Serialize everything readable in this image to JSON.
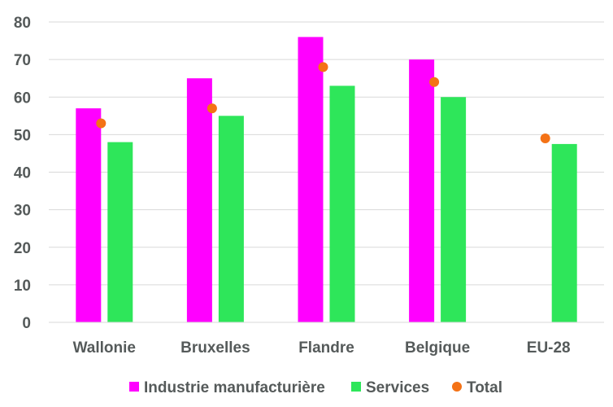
{
  "chart_data": {
    "type": "bar",
    "categories": [
      "Wallonie",
      "Bruxelles",
      "Flandre",
      "Belgique",
      "EU-28"
    ],
    "series": [
      {
        "name": "Industrie manufacturière",
        "kind": "bar",
        "color": "#ff00ff",
        "values": [
          57,
          65,
          76,
          70,
          null
        ]
      },
      {
        "name": "Services",
        "kind": "bar",
        "color": "#2ee65a",
        "values": [
          48,
          55,
          63,
          60,
          47.5
        ]
      },
      {
        "name": "Total",
        "kind": "point",
        "color": "#f47216",
        "values": [
          53,
          57,
          68,
          64,
          49
        ]
      }
    ],
    "ylim": [
      0,
      80
    ],
    "yticks": [
      0,
      10,
      20,
      30,
      40,
      50,
      60,
      70,
      80
    ],
    "grid": true,
    "legend": "bottom"
  }
}
